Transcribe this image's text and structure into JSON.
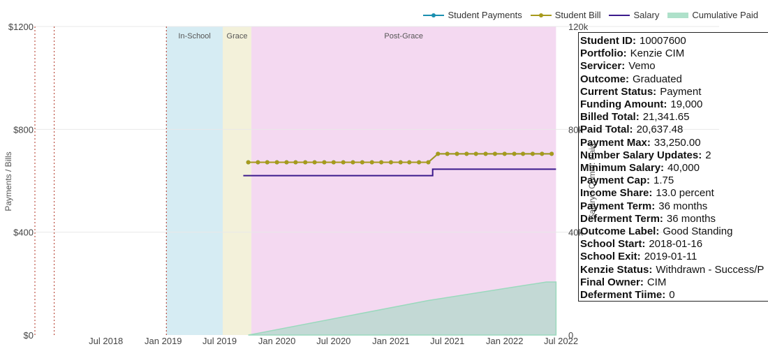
{
  "colors": {
    "payments": "#1a8fb0",
    "bill": "#a79a1c",
    "salary": "#3b1a8c",
    "cumulative": "#9ad9bd",
    "in_school_band": "#d6ecf3",
    "grace_band": "#f3f1da",
    "post_grace_band": "#f4d9f1",
    "marker_line": "#b03020"
  },
  "legend": [
    {
      "label": "Student Payments",
      "key": "payments",
      "kind": "line-marker"
    },
    {
      "label": "Student Bill",
      "key": "bill",
      "kind": "line-marker"
    },
    {
      "label": "Salary",
      "key": "salary",
      "kind": "line"
    },
    {
      "label": "Cumulative Paid",
      "key": "cumulative",
      "kind": "area"
    }
  ],
  "chart_data": {
    "type": "line",
    "left_axis": {
      "title": "Payments / Bills",
      "range": [
        0,
        1200
      ],
      "ticks": [
        0,
        400,
        800,
        1200
      ],
      "tick_labels": [
        "$0",
        "$400",
        "$800",
        "$1200"
      ]
    },
    "right_axis": {
      "title": "Salary / Cumul. Paid",
      "range": [
        0,
        120000
      ],
      "ticks": [
        0,
        40000,
        80000,
        120000
      ],
      "tick_labels": [
        "0",
        "40k",
        "80k",
        "120k"
      ]
    },
    "x_axis": {
      "range": [
        "2017-11-15",
        "2022-07-20"
      ],
      "ticks": [
        "2018-07-01",
        "2019-01-01",
        "2019-07-01",
        "2020-01-01",
        "2020-07-01",
        "2021-01-01",
        "2021-07-01",
        "2022-01-01",
        "2022-07-01"
      ],
      "tick_labels": [
        "Jul 2018",
        "Jan 2019",
        "Jul 2019",
        "Jan 2020",
        "Jul 2020",
        "Jan 2021",
        "Jul 2021",
        "Jan 2022",
        "Jul 2022"
      ]
    },
    "phases": [
      {
        "label": "In-School",
        "start": "2019-01-11",
        "end": "2019-07-11",
        "color_key": "in_school_band"
      },
      {
        "label": "Grace",
        "start": "2019-07-11",
        "end": "2019-10-11",
        "color_key": "grace_band"
      },
      {
        "label": "Post-Grace",
        "start": "2019-10-11",
        "end": "2022-06-15",
        "color_key": "post_grace_band"
      }
    ],
    "vertical_markers": [
      "2018-01-16",
      "2019-01-11"
    ],
    "series": [
      {
        "name": "Student Payments",
        "key": "payments",
        "segments": [
          {
            "start": "2019-10-01",
            "end": "2021-05-01",
            "value": 672
          },
          {
            "start": "2021-06-01",
            "end": "2022-06-01",
            "value": 705
          }
        ]
      },
      {
        "name": "Student Bill",
        "key": "bill",
        "segments": [
          {
            "start": "2019-10-01",
            "end": "2021-05-01",
            "value": 672
          },
          {
            "start": "2021-06-01",
            "end": "2022-06-01",
            "value": 705
          }
        ]
      },
      {
        "name": "Salary",
        "key": "salary",
        "steps": [
          {
            "start": "2019-09-15",
            "end": "2021-05-15",
            "value": 62000
          },
          {
            "start": "2021-05-15",
            "end": "2022-06-15",
            "value": 64500
          }
        ]
      },
      {
        "name": "Cumulative Paid",
        "key": "cumulative",
        "points": [
          {
            "date": "2019-10-01",
            "value": 0
          },
          {
            "date": "2019-11-01",
            "value": 672
          },
          {
            "date": "2021-05-01",
            "value": 13440
          },
          {
            "date": "2022-05-15",
            "value": 20637.48
          },
          {
            "date": "2022-06-15",
            "value": 20637.48
          }
        ]
      }
    ]
  },
  "info": [
    {
      "key": "Student ID:",
      "value": "10007600"
    },
    {
      "key": "Portfolio:",
      "value": "Kenzie CIM"
    },
    {
      "key": "Servicer:",
      "value": "Vemo"
    },
    {
      "key": "Outcome:",
      "value": "Graduated"
    },
    {
      "key": "Current Status:",
      "value": "Payment"
    },
    {
      "key": "Funding Amount:",
      "value": "19,000"
    },
    {
      "key": "Billed Total:",
      "value": "21,341.65"
    },
    {
      "key": "Paid Total:",
      "value": "20,637.48"
    },
    {
      "key": "Payment Max:",
      "value": "33,250.00"
    },
    {
      "key": "Number Salary Updates:",
      "value": "2"
    },
    {
      "key": "Minimum Salary:",
      "value": "40,000"
    },
    {
      "key": "Payment Cap:",
      "value": "1.75"
    },
    {
      "key": "Income Share:",
      "value": "13.0 percent"
    },
    {
      "key": "Payment Term:",
      "value": "36 months"
    },
    {
      "key": "Deferment Term:",
      "value": "36 months"
    },
    {
      "key": "Outcome Label:",
      "value": "Good Standing"
    },
    {
      "key": "School Start:",
      "value": "2018-01-16"
    },
    {
      "key": "School Exit:",
      "value": "2019-01-11"
    },
    {
      "key": "Kenzie Status:",
      "value": "Withdrawn - Success/P"
    },
    {
      "key": "Final Owner:",
      "value": "CIM"
    },
    {
      "key": "Deferment Tiime:",
      "value": "0"
    }
  ]
}
